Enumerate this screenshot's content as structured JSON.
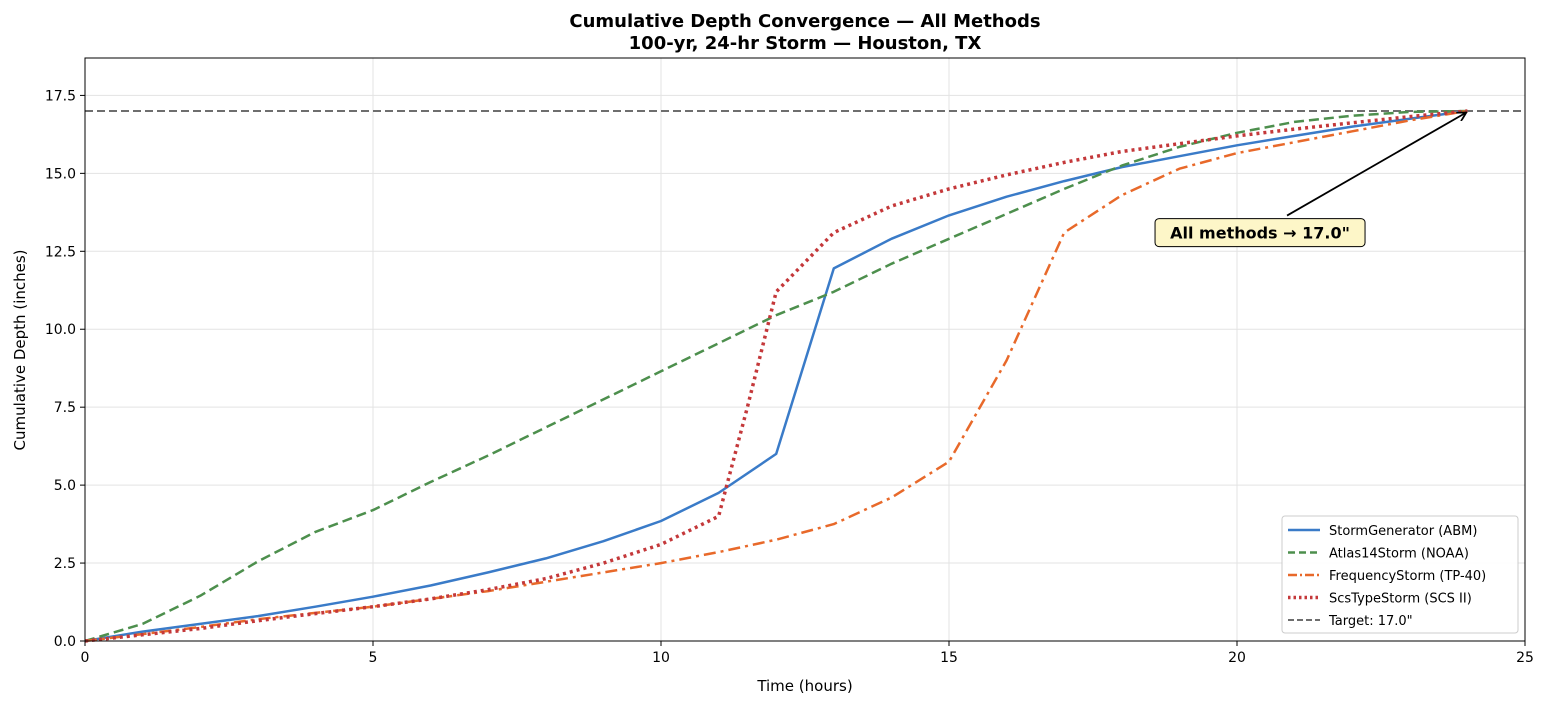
{
  "chart_data": {
    "type": "line",
    "title": "Cumulative Depth Convergence — All Methods",
    "subtitle": "100-yr, 24-hr Storm — Houston, TX",
    "xlabel": "Time (hours)",
    "ylabel": "Cumulative Depth (inches)",
    "xlim": [
      0,
      25
    ],
    "ylim": [
      0,
      18.7
    ],
    "xticks": [
      0,
      5,
      10,
      15,
      20,
      25
    ],
    "xtick_labels": [
      "0",
      "5",
      "10",
      "15",
      "20",
      "25"
    ],
    "yticks": [
      0,
      2.5,
      5,
      7.5,
      10,
      12.5,
      15,
      17.5
    ],
    "ytick_labels": [
      "0.0",
      "2.5",
      "5.0",
      "7.5",
      "10.0",
      "12.5",
      "15.0",
      "17.5"
    ],
    "grid": true,
    "legend_position": "bottom-right",
    "series": [
      {
        "name": "StormGenerator (ABM)",
        "color": "#3a7bc8",
        "dash": "solid",
        "x": [
          0,
          1,
          2,
          3,
          4,
          5,
          6,
          7,
          8,
          9,
          10,
          11,
          12,
          13,
          14,
          15,
          16,
          17,
          18,
          19,
          20,
          21,
          22,
          23,
          24
        ],
        "y": [
          0,
          0.3,
          0.55,
          0.8,
          1.1,
          1.42,
          1.78,
          2.2,
          2.65,
          3.2,
          3.85,
          4.75,
          6.0,
          11.95,
          12.9,
          13.65,
          14.25,
          14.75,
          15.2,
          15.55,
          15.9,
          16.2,
          16.5,
          16.75,
          17.0
        ]
      },
      {
        "name": "Atlas14Storm (NOAA)",
        "color": "#4d8f4d",
        "dash": "dashed",
        "x": [
          0,
          1,
          2,
          3,
          4,
          5,
          6,
          7,
          8,
          9,
          10,
          11,
          12,
          13,
          14,
          15,
          16,
          17,
          18,
          19,
          20,
          21,
          22,
          23,
          24
        ],
        "y": [
          0,
          0.55,
          1.45,
          2.55,
          3.5,
          4.2,
          5.1,
          5.95,
          6.85,
          7.75,
          8.65,
          9.55,
          10.45,
          11.2,
          12.1,
          12.9,
          13.7,
          14.5,
          15.25,
          15.85,
          16.3,
          16.65,
          16.85,
          16.97,
          17.0
        ]
      },
      {
        "name": "FrequencyStorm (TP-40)",
        "color": "#e8692a",
        "dash": "dashdot",
        "x": [
          0,
          1,
          2,
          3,
          4,
          5,
          6,
          7,
          8,
          9,
          10,
          11,
          12,
          13,
          14,
          15,
          16,
          17,
          18,
          19,
          20,
          21,
          22,
          23,
          24
        ],
        "y": [
          0,
          0.22,
          0.45,
          0.7,
          0.9,
          1.1,
          1.35,
          1.6,
          1.9,
          2.2,
          2.5,
          2.85,
          3.25,
          3.75,
          4.6,
          5.75,
          9.0,
          13.1,
          14.3,
          15.15,
          15.65,
          16.0,
          16.35,
          16.7,
          17.0
        ]
      },
      {
        "name": "ScsTypeStorm (SCS II)",
        "color": "#c4383a",
        "dash": "dotted",
        "x": [
          0,
          1,
          2,
          3,
          4,
          5,
          6,
          7,
          8,
          9,
          10,
          11,
          11.5,
          12,
          13,
          14,
          15,
          16,
          17,
          18,
          19,
          20,
          21,
          22,
          23,
          24
        ],
        "y": [
          0,
          0.2,
          0.4,
          0.65,
          0.88,
          1.1,
          1.35,
          1.65,
          2.0,
          2.5,
          3.1,
          4.0,
          7.5,
          11.2,
          13.1,
          13.95,
          14.5,
          14.95,
          15.35,
          15.7,
          15.95,
          16.2,
          16.42,
          16.62,
          16.82,
          17.0
        ]
      },
      {
        "name": "Target: 17.0\"",
        "color": "#6e6e6e",
        "dash": "dashed",
        "x": [
          0,
          25
        ],
        "y": [
          17.0,
          17.0
        ]
      }
    ],
    "annotation": {
      "text": "All methods → 17.0\"",
      "point": [
        24,
        17.0
      ],
      "text_position": [
        20.4,
        13.1
      ],
      "box_color": "#fdf6c8"
    }
  }
}
